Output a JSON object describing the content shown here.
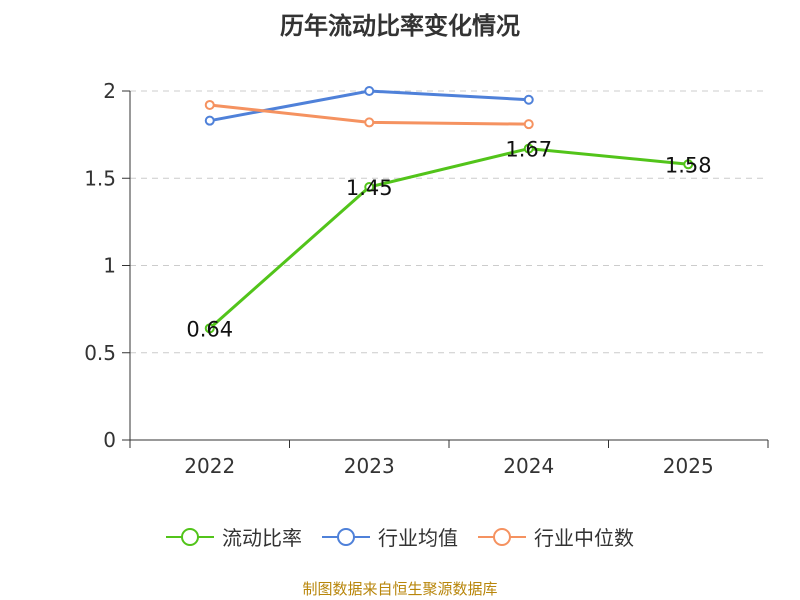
{
  "chart_data": {
    "type": "line",
    "title": "历年流动比率变化情况",
    "categories": [
      "2022",
      "2023",
      "2024",
      "2025"
    ],
    "ylim": [
      0,
      2
    ],
    "yticks": [
      0,
      0.5,
      1,
      1.5,
      2
    ],
    "ytick_labels": [
      "0",
      "0.5",
      "1",
      "1.5",
      "2"
    ],
    "grid": true,
    "legend_position": "bottom",
    "series": [
      {
        "name": "流动比率",
        "color": "#52c41a",
        "values": [
          0.64,
          1.45,
          1.67,
          1.58
        ],
        "labels": [
          "0.64",
          "1.45",
          "1.67",
          "1.58"
        ]
      },
      {
        "name": "行业均值",
        "color": "#4f81d9",
        "values": [
          1.83,
          2.0,
          1.95,
          null
        ]
      },
      {
        "name": "行业中位数",
        "color": "#f59260",
        "values": [
          1.92,
          1.82,
          1.81,
          null
        ]
      }
    ]
  },
  "source": "制图数据来自恒生聚源数据库"
}
